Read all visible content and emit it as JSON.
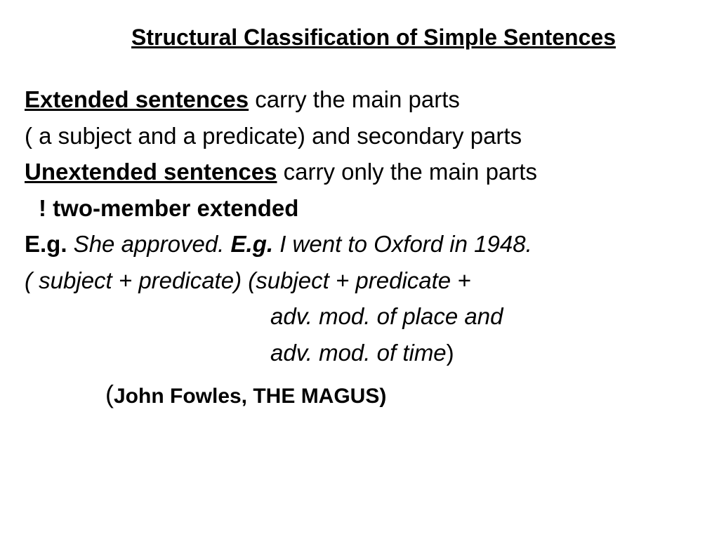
{
  "title": "Structural Classification of Simple Sentences",
  "line1": {
    "term": "Extended sentences",
    "rest": " carry the main parts"
  },
  "line2": "( a subject and a predicate) and secondary parts",
  "line3": {
    "term": "Unextended sentences",
    "rest": " carry only the main parts"
  },
  "line4": "! two-member extended",
  "line5": {
    "eg1": "E.g.",
    "ex1": " She approved.   ",
    "eg2": "E.g.",
    "ex2": " I went to Oxford in 1948."
  },
  "line6": "( subject + predicate)   (subject + predicate +",
  "line7": "adv. mod. of place and",
  "line8": {
    "text": "adv. mod. of time",
    "paren": ")"
  },
  "source": {
    "open": "(",
    "text": "John Fowles, THE MAGUS)"
  },
  "styles": {
    "title_fontsize": 32,
    "body_fontsize": 33,
    "text_color": "#000000",
    "background_color": "#ffffff",
    "font_family": "Arial"
  }
}
